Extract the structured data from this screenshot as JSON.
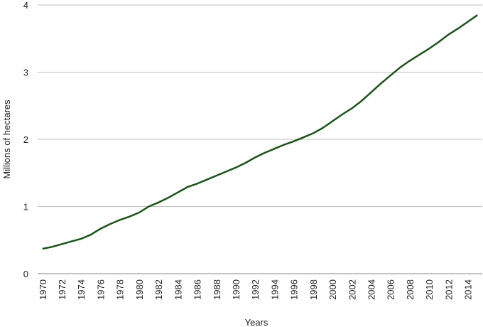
{
  "chart_data": {
    "type": "line",
    "x_label": "Years",
    "y_label": "Millions  of hectares",
    "categories": [
      "1970",
      null,
      "1972",
      null,
      "1974",
      null,
      "1976",
      null,
      "1978",
      null,
      "1980",
      null,
      "1982",
      null,
      "1984",
      null,
      "1986",
      null,
      "1988",
      null,
      "1990",
      null,
      "1992",
      null,
      "1994",
      null,
      "1996",
      null,
      "1998",
      null,
      "2000",
      null,
      "2002",
      null,
      "2004",
      null,
      "2006",
      null,
      "2008",
      null,
      "2010",
      null,
      "2012",
      null,
      "2014",
      null
    ],
    "series": [
      {
        "color": "#1b5319",
        "values": [
          0.37,
          0.4,
          0.44,
          0.48,
          0.52,
          0.58,
          0.67,
          0.74,
          0.8,
          0.85,
          0.91,
          1.0,
          1.06,
          1.13,
          1.21,
          1.29,
          1.34,
          1.4,
          1.46,
          1.52,
          1.58,
          1.65,
          1.73,
          1.8,
          1.86,
          1.92,
          1.97,
          2.03,
          2.09,
          2.17,
          2.27,
          2.37,
          2.46,
          2.57,
          2.7,
          2.83,
          2.95,
          3.07,
          3.17,
          3.26,
          3.35,
          3.45,
          3.56,
          3.65,
          3.75,
          3.85
        ]
      }
    ],
    "ylim": [
      0,
      4
    ],
    "yticks": [
      0,
      1,
      2,
      3,
      4
    ],
    "grid": true
  }
}
